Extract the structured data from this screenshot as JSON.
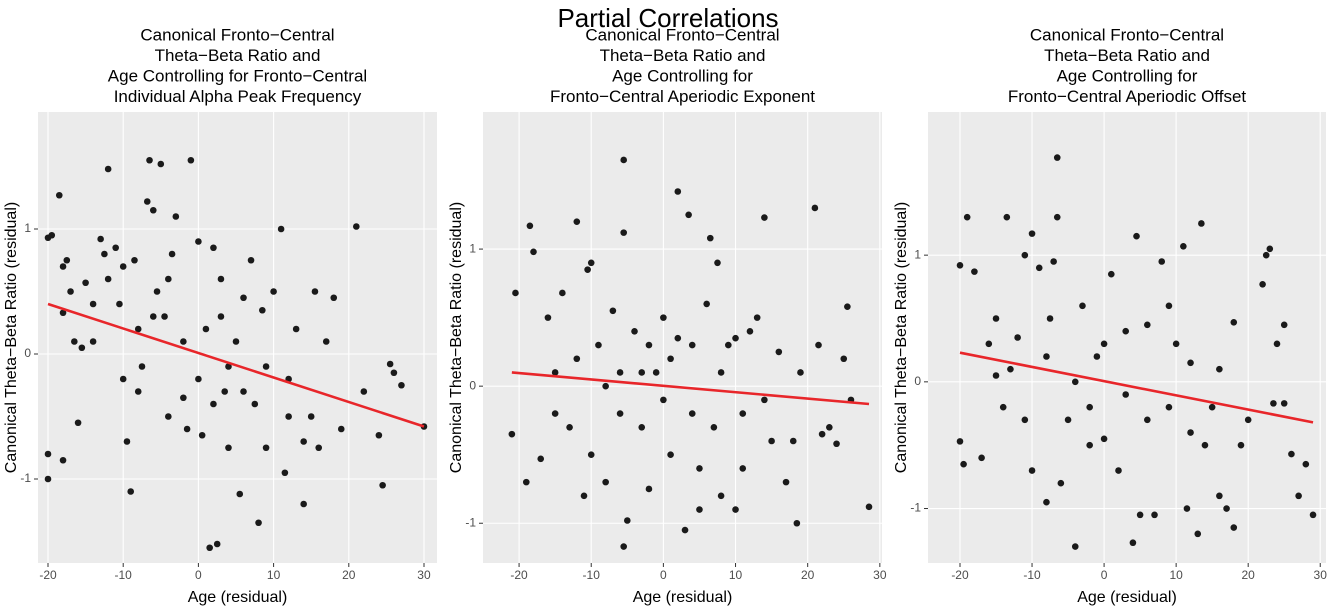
{
  "title": "Partial Correlations",
  "chart_data": [
    {
      "type": "scatter",
      "title": [
        "Canonical Fronto−Central",
        "Theta−Beta Ratio and",
        "Age Controlling for Fronto−Central",
        "Individual Alpha Peak Frequency"
      ],
      "x_label": "Age (residual)",
      "y_label": "Canonical Theta−Beta Ratio (residual)",
      "xlim": [
        -21.33,
        31.73
      ],
      "ylim": [
        -1.672,
        1.936
      ],
      "xticks": [
        -20,
        -10,
        0,
        10,
        20,
        30
      ],
      "yticks": [
        -1,
        0,
        1
      ],
      "grid": true,
      "background": "#ebebeb",
      "series": [
        {
          "color": "#1a1a1a",
          "x": [
            -20,
            -19.5,
            -20,
            -20,
            -18.5,
            -18,
            -17.5,
            -18,
            -17,
            -18,
            -16.5,
            -16,
            -15.5,
            -15,
            -14,
            -13,
            -12,
            -12.5,
            -12,
            -11,
            -10.5,
            -10,
            -9.5,
            -9,
            -8.5,
            -8,
            -7.5,
            -6.5,
            -6,
            -6.8,
            -5.5,
            -5,
            -4.5,
            -4,
            -3.5,
            -3,
            -2,
            -1,
            -1.5,
            0,
            0.5,
            1,
            1.5,
            2,
            2.5,
            3,
            3.5,
            4,
            5,
            5.5,
            6,
            7,
            7.5,
            8,
            8.5,
            9,
            10,
            11,
            11.5,
            12,
            13,
            14,
            15,
            15.5,
            16,
            17,
            18,
            19,
            21,
            22,
            24,
            24.5,
            25.5,
            26,
            27,
            30,
            -4,
            -2,
            4,
            6,
            9,
            12,
            -14,
            -8,
            0,
            3,
            -10,
            14,
            -6,
            2
          ],
          "values": [
            0.93,
            0.95,
            -0.8,
            -1.0,
            1.27,
            0.7,
            0.75,
            0.33,
            0.5,
            -0.85,
            0.1,
            -0.55,
            0.05,
            0.57,
            0.4,
            0.92,
            1.48,
            0.8,
            0.6,
            0.85,
            0.4,
            0.7,
            -0.7,
            -1.1,
            0.75,
            0.2,
            -0.1,
            1.55,
            1.15,
            1.22,
            0.5,
            1.52,
            0.3,
            -0.5,
            0.8,
            1.1,
            -0.35,
            1.55,
            -0.6,
            0.9,
            -0.65,
            0.2,
            -1.55,
            0.85,
            -1.52,
            0.3,
            -0.3,
            -0.75,
            0.1,
            -1.12,
            0.45,
            0.75,
            -0.4,
            -1.35,
            0.35,
            -0.75,
            0.5,
            1.0,
            -0.95,
            -0.2,
            0.2,
            -1.2,
            -0.5,
            0.5,
            -0.75,
            0.1,
            0.45,
            -0.6,
            1.02,
            -0.3,
            -0.65,
            -1.05,
            -0.08,
            -0.15,
            -0.25,
            -0.58,
            0.6,
            0.1,
            -0.1,
            -0.3,
            -0.1,
            -0.5,
            0.1,
            -0.3,
            -0.2,
            0.6,
            -0.2,
            -0.7,
            0.3,
            -0.4
          ]
        },
        {
          "type": "line",
          "color": "#e8262a",
          "x": [
            -20,
            30
          ],
          "values": [
            0.4,
            -0.58
          ]
        }
      ]
    },
    {
      "type": "scatter",
      "title": [
        "Canonical Fronto−Central",
        "Theta−Beta Ratio and",
        "Age Controlling for",
        "Fronto−Central Aperiodic Exponent"
      ],
      "x_label": "Age (residual)",
      "y_label": "Canonical Theta−Beta Ratio (residual)",
      "xlim": [
        -25,
        30.3
      ],
      "ylim": [
        -1.29,
        2.0
      ],
      "xticks": [
        -20,
        -10,
        0,
        10,
        20,
        30
      ],
      "yticks": [
        -1,
        0,
        1
      ],
      "grid": true,
      "background": "#ebebeb",
      "series": [
        {
          "color": "#1a1a1a",
          "x": [
            -21,
            -20.5,
            -19,
            -18.5,
            -18,
            -17,
            -16,
            -15,
            -14,
            -13,
            -12,
            -11,
            -10.5,
            -10,
            -9,
            -8,
            -7,
            -6,
            -5.5,
            -5.5,
            -5,
            -5.5,
            -4,
            -3,
            -2,
            -1,
            0,
            1,
            2,
            2,
            3,
            3.5,
            4,
            5,
            6,
            6.5,
            7,
            7.5,
            8,
            9,
            10,
            11,
            12,
            13,
            14,
            14,
            15,
            16,
            17,
            18,
            18.5,
            19,
            21,
            21.5,
            22,
            23,
            24,
            25,
            25.5,
            26,
            28.5,
            -15,
            -12,
            -8,
            -3,
            1,
            4,
            8,
            10,
            -10,
            -2,
            5,
            11,
            0,
            -6
          ],
          "values": [
            -0.35,
            0.68,
            -0.7,
            1.17,
            0.98,
            -0.53,
            0.5,
            0.1,
            0.68,
            -0.3,
            1.2,
            -0.8,
            0.85,
            0.9,
            0.3,
            -0.7,
            0.55,
            -0.2,
            1.65,
            1.12,
            -0.98,
            -1.17,
            0.4,
            -0.3,
            -0.75,
            0.1,
            0.5,
            -0.5,
            1.42,
            0.35,
            -1.05,
            1.25,
            0.3,
            -0.9,
            0.6,
            1.08,
            -0.3,
            0.9,
            -0.8,
            0.3,
            -0.9,
            -0.2,
            0.4,
            0.5,
            1.23,
            -0.1,
            -0.4,
            0.25,
            -0.7,
            -0.4,
            -1.0,
            0.1,
            1.3,
            0.3,
            -0.35,
            -0.3,
            -0.42,
            0.2,
            0.58,
            -0.1,
            -0.88,
            -0.2,
            0.2,
            0,
            0.1,
            0.2,
            -0.2,
            0.1,
            0.35,
            -0.5,
            0.3,
            -0.6,
            -0.6,
            -0.1,
            0.1
          ]
        },
        {
          "type": "line",
          "color": "#e8262a",
          "x": [
            -21,
            28.5
          ],
          "values": [
            0.1,
            -0.13
          ]
        }
      ]
    },
    {
      "type": "scatter",
      "title": [
        "Canonical Fronto−Central",
        "Theta−Beta Ratio and",
        "Age Controlling for",
        "Fronto−Central Aperiodic Offset"
      ],
      "x_label": "Age (residual)",
      "y_label": "Canonical Theta−Beta Ratio (residual)",
      "xlim": [
        -24.44,
        30.8
      ],
      "ylim": [
        -1.43,
        2.13
      ],
      "xticks": [
        -20,
        -10,
        0,
        10,
        20,
        30
      ],
      "yticks": [
        -1,
        0,
        1
      ],
      "grid": true,
      "background": "#ebebeb",
      "series": [
        {
          "color": "#1a1a1a",
          "x": [
            -20,
            -20,
            -19.5,
            -19,
            -18,
            -17,
            -16,
            -15,
            -14,
            -13.5,
            -13,
            -12,
            -11,
            -10,
            -10,
            -9,
            -8,
            -7.5,
            -7,
            -6.5,
            -6.5,
            -6,
            -5,
            -4,
            -3,
            -2,
            -1,
            0,
            1,
            2,
            3,
            4,
            4.5,
            5,
            6,
            7,
            8,
            9,
            10,
            11,
            11.5,
            12,
            13,
            13.5,
            14,
            15,
            16,
            17,
            18,
            18,
            19,
            20,
            22,
            22.5,
            23,
            23.5,
            24,
            25,
            25,
            26,
            27,
            28,
            29,
            -15,
            -11,
            -8,
            -4,
            0,
            3,
            6,
            9,
            12,
            16,
            -2
          ],
          "values": [
            0.92,
            -0.47,
            -0.65,
            1.3,
            0.87,
            -0.6,
            0.3,
            0.5,
            -0.2,
            1.3,
            0.1,
            0.35,
            1.0,
            1.17,
            -0.7,
            0.9,
            -0.95,
            0.5,
            0.95,
            1.77,
            1.3,
            -0.8,
            -0.3,
            -1.3,
            0.6,
            -0.5,
            0.2,
            -0.45,
            0.85,
            -0.7,
            0.4,
            -1.27,
            1.15,
            -1.05,
            0.45,
            -1.05,
            0.95,
            -0.2,
            0.3,
            1.07,
            -1.0,
            0.15,
            -1.2,
            1.25,
            -0.5,
            -0.2,
            -0.9,
            -1.0,
            -1.15,
            0.47,
            -0.5,
            -0.3,
            0.77,
            1.0,
            1.05,
            -0.17,
            0.3,
            -0.17,
            0.45,
            -0.57,
            -0.9,
            -0.65,
            -1.05,
            0.05,
            -0.3,
            0.2,
            0,
            0.3,
            -0.1,
            -0.3,
            0.6,
            -0.4,
            0.1,
            -0.2
          ]
        },
        {
          "type": "line",
          "color": "#e8262a",
          "x": [
            -20,
            29
          ],
          "values": [
            0.23,
            -0.32
          ]
        }
      ]
    }
  ]
}
